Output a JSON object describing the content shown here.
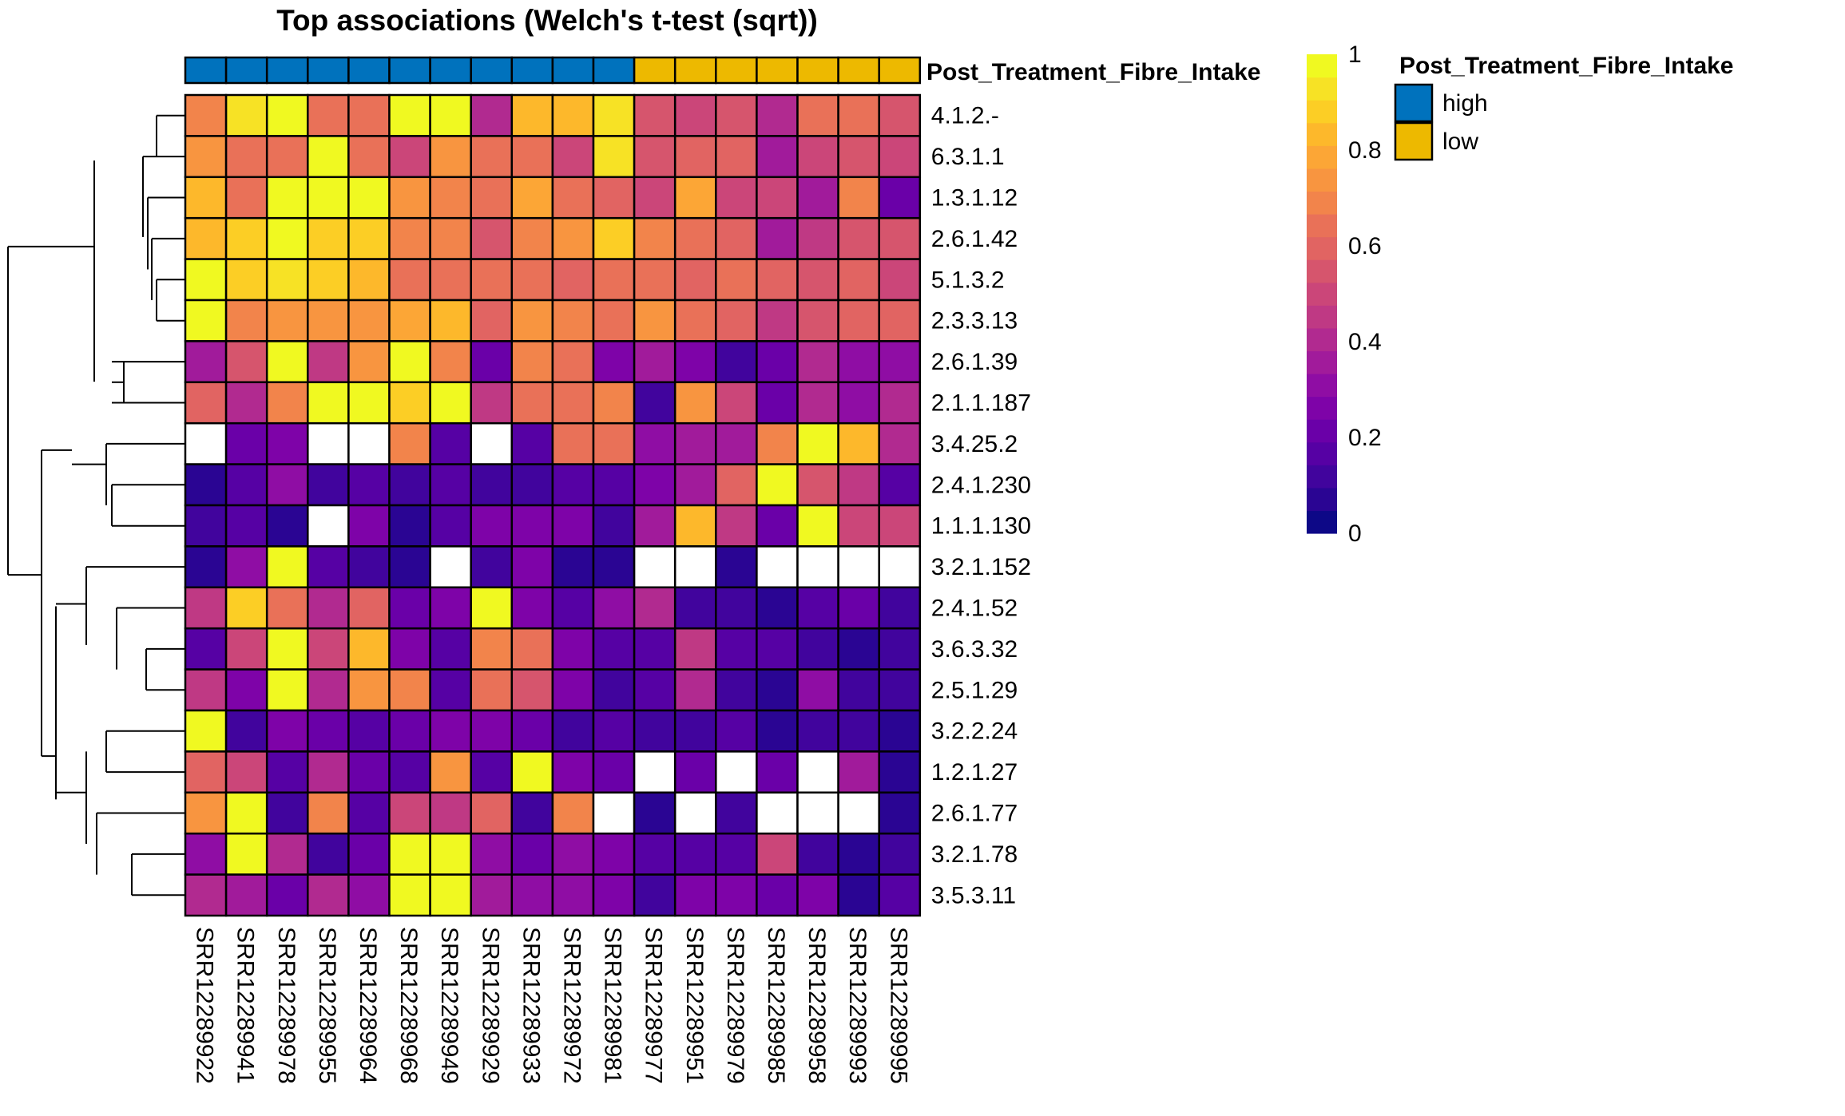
{
  "chart_data": {
    "type": "heatmap",
    "title": "Top associations (Welch's t-test (sqrt))",
    "annotation": {
      "name": "Post_Treatment_Fibre_Intake",
      "legend_title": "Post_Treatment_Fibre_Intake",
      "levels": [
        {
          "label": "high",
          "color": "#0072BD"
        },
        {
          "label": "low",
          "color": "#EDB900"
        }
      ],
      "groups": [
        "high",
        "high",
        "high",
        "high",
        "high",
        "high",
        "high",
        "high",
        "high",
        "high",
        "high",
        "low",
        "low",
        "low",
        "low",
        "low",
        "low",
        "low"
      ]
    },
    "columns": [
      "SRR12289922",
      "SRR12289941",
      "SRR12289978",
      "SRR12289955",
      "SRR12289964",
      "SRR12289968",
      "SRR12289949",
      "SRR12289929",
      "SRR12289933",
      "SRR12289972",
      "SRR12289981",
      "SRR12289977",
      "SRR12289951",
      "SRR12289979",
      "SRR12289985",
      "SRR12289958",
      "SRR12289993",
      "SRR12289995"
    ],
    "rows": [
      "4.1.2.-",
      "6.3.1.1",
      "1.3.1.12",
      "2.6.1.42",
      "5.1.3.2",
      "2.3.3.13",
      "2.6.1.39",
      "2.1.1.187",
      "3.4.25.2",
      "2.4.1.230",
      "1.1.1.130",
      "3.2.1.152",
      "2.4.1.52",
      "3.6.3.32",
      "2.5.1.29",
      "3.2.2.24",
      "1.2.1.27",
      "2.6.1.77",
      "3.2.1.78",
      "3.5.3.11"
    ],
    "values": [
      [
        0.7,
        0.93,
        0.98,
        0.62,
        0.65,
        0.98,
        0.98,
        0.42,
        0.85,
        0.82,
        0.93,
        0.55,
        0.5,
        0.55,
        0.42,
        0.62,
        0.65,
        0.55
      ],
      [
        0.75,
        0.65,
        0.65,
        0.98,
        0.65,
        0.48,
        0.75,
        0.62,
        0.65,
        0.5,
        0.95,
        0.55,
        0.6,
        0.6,
        0.38,
        0.48,
        0.55,
        0.52
      ],
      [
        0.85,
        0.65,
        0.98,
        0.98,
        0.98,
        0.75,
        0.68,
        0.62,
        0.8,
        0.62,
        0.58,
        0.52,
        0.78,
        0.48,
        0.52,
        0.35,
        0.68,
        0.2
      ],
      [
        0.85,
        0.88,
        0.98,
        0.88,
        0.88,
        0.7,
        0.7,
        0.55,
        0.68,
        0.72,
        0.9,
        0.68,
        0.62,
        0.58,
        0.38,
        0.45,
        0.55,
        0.55
      ],
      [
        0.98,
        0.88,
        0.95,
        0.88,
        0.85,
        0.62,
        0.65,
        0.65,
        0.62,
        0.6,
        0.62,
        0.62,
        0.6,
        0.62,
        0.58,
        0.55,
        0.58,
        0.52
      ],
      [
        0.98,
        0.68,
        0.75,
        0.75,
        0.75,
        0.8,
        0.82,
        0.6,
        0.75,
        0.7,
        0.65,
        0.75,
        0.65,
        0.58,
        0.45,
        0.55,
        0.58,
        0.58
      ],
      [
        0.35,
        0.55,
        0.98,
        0.45,
        0.75,
        0.98,
        0.68,
        0.22,
        0.68,
        0.62,
        0.25,
        0.35,
        0.25,
        0.12,
        0.2,
        0.4,
        0.3,
        0.3
      ],
      [
        0.6,
        0.42,
        0.7,
        0.98,
        0.98,
        0.88,
        0.98,
        0.45,
        0.62,
        0.62,
        0.7,
        0.1,
        0.75,
        0.48,
        0.2,
        0.42,
        0.32,
        0.4
      ],
      [
        null,
        0.2,
        0.25,
        null,
        null,
        0.7,
        0.15,
        null,
        0.18,
        0.65,
        0.62,
        0.3,
        0.38,
        0.35,
        0.68,
        0.98,
        0.85,
        0.4
      ],
      [
        0.05,
        0.15,
        0.3,
        0.12,
        0.15,
        0.1,
        0.18,
        0.12,
        0.12,
        0.15,
        0.18,
        0.25,
        0.35,
        0.6,
        0.98,
        0.55,
        0.45,
        0.15
      ],
      [
        0.1,
        0.18,
        0.05,
        null,
        0.25,
        0.05,
        0.15,
        0.25,
        0.28,
        0.25,
        0.1,
        0.38,
        0.82,
        0.45,
        0.22,
        0.98,
        0.5,
        0.52
      ],
      [
        0.05,
        0.32,
        0.98,
        0.15,
        0.12,
        0.05,
        null,
        0.12,
        0.28,
        0.05,
        0.05,
        null,
        null,
        0.05,
        null,
        null,
        null,
        null
      ],
      [
        0.45,
        0.88,
        0.65,
        0.42,
        0.6,
        0.2,
        0.25,
        0.98,
        0.28,
        0.18,
        0.3,
        0.4,
        0.1,
        0.1,
        0.05,
        0.15,
        0.22,
        0.12
      ],
      [
        0.15,
        0.52,
        0.98,
        0.5,
        0.85,
        0.28,
        0.15,
        0.68,
        0.62,
        0.25,
        0.15,
        0.15,
        0.45,
        0.15,
        0.18,
        0.12,
        0.05,
        0.1
      ],
      [
        0.45,
        0.25,
        0.98,
        0.4,
        0.75,
        0.68,
        0.18,
        0.65,
        0.55,
        0.28,
        0.1,
        0.18,
        0.42,
        0.1,
        0.05,
        0.3,
        0.12,
        0.1
      ],
      [
        0.98,
        0.12,
        0.25,
        0.2,
        0.18,
        0.22,
        0.28,
        0.28,
        0.22,
        0.12,
        0.15,
        0.12,
        0.12,
        0.15,
        0.05,
        0.12,
        0.1,
        0.05
      ],
      [
        0.6,
        0.5,
        0.15,
        0.4,
        0.2,
        0.15,
        0.75,
        0.15,
        0.98,
        0.28,
        0.22,
        null,
        0.2,
        null,
        0.2,
        null,
        0.38,
        0.05
      ],
      [
        0.72,
        0.98,
        0.12,
        0.7,
        0.15,
        0.48,
        0.45,
        0.58,
        0.12,
        0.68,
        null,
        0.05,
        null,
        0.12,
        null,
        null,
        null,
        0.05
      ],
      [
        0.32,
        0.98,
        0.4,
        0.12,
        0.22,
        0.98,
        0.98,
        0.3,
        0.2,
        0.3,
        0.28,
        0.15,
        0.18,
        0.15,
        0.5,
        0.12,
        0.05,
        0.12
      ],
      [
        0.4,
        0.35,
        0.2,
        0.4,
        0.32,
        0.98,
        0.98,
        0.35,
        0.3,
        0.32,
        0.25,
        0.1,
        0.28,
        0.25,
        0.2,
        0.28,
        0.05,
        0.15
      ]
    ],
    "color_scale": {
      "min": 0,
      "max": 1,
      "ticks": [
        "0",
        "0.2",
        "0.4",
        "0.6",
        "0.8",
        "1"
      ],
      "colors": [
        "#0D0887",
        "#2A0593",
        "#41049D",
        "#5601A4",
        "#6A00A8",
        "#7E03A8",
        "#8F0DA4",
        "#A11B9B",
        "#B12A90",
        "#BF3984",
        "#CB4679",
        "#D6556D",
        "#E16462",
        "#E97158",
        "#F2844B",
        "#F89540",
        "#FCA636",
        "#FDB82B",
        "#FCCE25",
        "#F7E225",
        "#F0F921"
      ]
    },
    "dendrogram": "hierarchical clustering of rows"
  }
}
